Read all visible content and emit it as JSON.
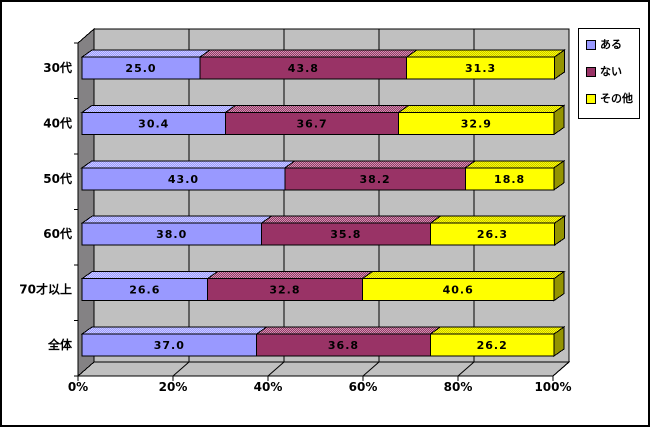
{
  "window": {
    "background": "#FFFFFF",
    "border_color": "#000000"
  },
  "chart_data": {
    "type": "bar",
    "subtype": "stacked-horizontal-3d",
    "title": "",
    "categories": [
      "30代",
      "40代",
      "50代",
      "60代",
      "70才以上",
      "全体"
    ],
    "series": [
      {
        "name": "ある",
        "color": "#9999FF",
        "values": [
          25.0,
          30.4,
          43.0,
          38.0,
          26.6,
          37.0
        ]
      },
      {
        "name": "ない",
        "color": "#993366",
        "values": [
          43.8,
          36.7,
          38.2,
          35.8,
          32.8,
          36.8
        ]
      },
      {
        "name": "その他",
        "color": "#FFFF00",
        "values": [
          31.3,
          32.9,
          18.8,
          26.3,
          40.6,
          26.2
        ]
      }
    ],
    "x_axis": {
      "tick_labels": [
        "0%",
        "20%",
        "40%",
        "60%",
        "80%",
        "100%"
      ],
      "min": 0,
      "max": 100,
      "grid": true
    },
    "data_labels": "shown",
    "legend": {
      "position": "top-right"
    },
    "plot": {
      "back_wall_color": "#C0C0C0",
      "side_wall_color": "#848284",
      "floor_color": "#C0C0C0",
      "gridline_color": "#000000",
      "outline_color": "#000000"
    }
  }
}
